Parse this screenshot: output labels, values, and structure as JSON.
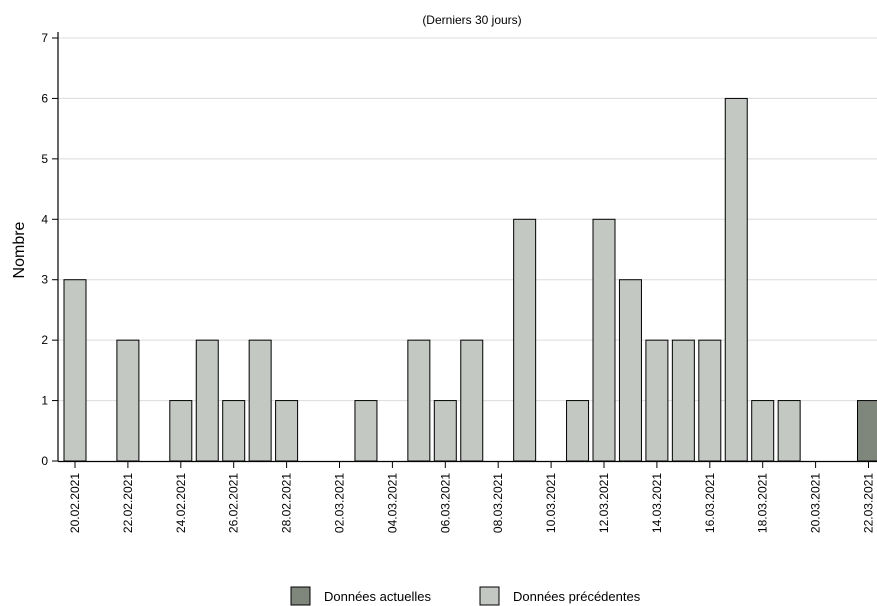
{
  "chart_data": {
    "type": "bar",
    "subtitle": "(Derniers 30 jours)",
    "xlabel": "",
    "ylabel": "Nombre",
    "ylim": [
      0,
      7
    ],
    "yticks": [
      0,
      1,
      2,
      3,
      4,
      5,
      6,
      7
    ],
    "grid": true,
    "legend_position": "bottom",
    "colors": {
      "current": "#7f877d",
      "previous": "#c3c8c2"
    },
    "x_tick_labels": [
      "20.02.2021",
      "22.02.2021",
      "24.02.2021",
      "26.02.2021",
      "28.02.2021",
      "02.03.2021",
      "04.03.2021",
      "06.03.2021",
      "08.03.2021",
      "10.03.2021",
      "12.03.2021",
      "14.03.2021",
      "16.03.2021",
      "18.03.2021",
      "20.03.2021",
      "22.03.2021"
    ],
    "categories": [
      "20.02.2021",
      "21.02.2021",
      "22.02.2021",
      "23.02.2021",
      "24.02.2021",
      "25.02.2021",
      "26.02.2021",
      "27.02.2021",
      "28.02.2021",
      "01.03.2021",
      "02.03.2021",
      "03.03.2021",
      "04.03.2021",
      "05.03.2021",
      "06.03.2021",
      "07.03.2021",
      "08.03.2021",
      "09.03.2021",
      "10.03.2021",
      "11.03.2021",
      "12.03.2021",
      "13.03.2021",
      "14.03.2021",
      "15.03.2021",
      "16.03.2021",
      "17.03.2021",
      "18.03.2021",
      "19.03.2021",
      "20.03.2021",
      "21.03.2021",
      "22.03.2021"
    ],
    "series": [
      {
        "name": "Données actuelles",
        "color_key": "current",
        "values": [
          0,
          0,
          0,
          0,
          0,
          0,
          0,
          0,
          0,
          0,
          0,
          0,
          0,
          0,
          0,
          0,
          0,
          0,
          0,
          0,
          0,
          0,
          0,
          0,
          0,
          0,
          0,
          0,
          0,
          0,
          1
        ]
      },
      {
        "name": "Données précédentes",
        "color_key": "previous",
        "values": [
          3,
          0,
          2,
          0,
          1,
          2,
          1,
          2,
          1,
          0,
          0,
          1,
          0,
          2,
          1,
          2,
          0,
          4,
          0,
          1,
          4,
          3,
          2,
          2,
          2,
          6,
          1,
          1,
          0,
          0,
          0
        ]
      }
    ]
  }
}
